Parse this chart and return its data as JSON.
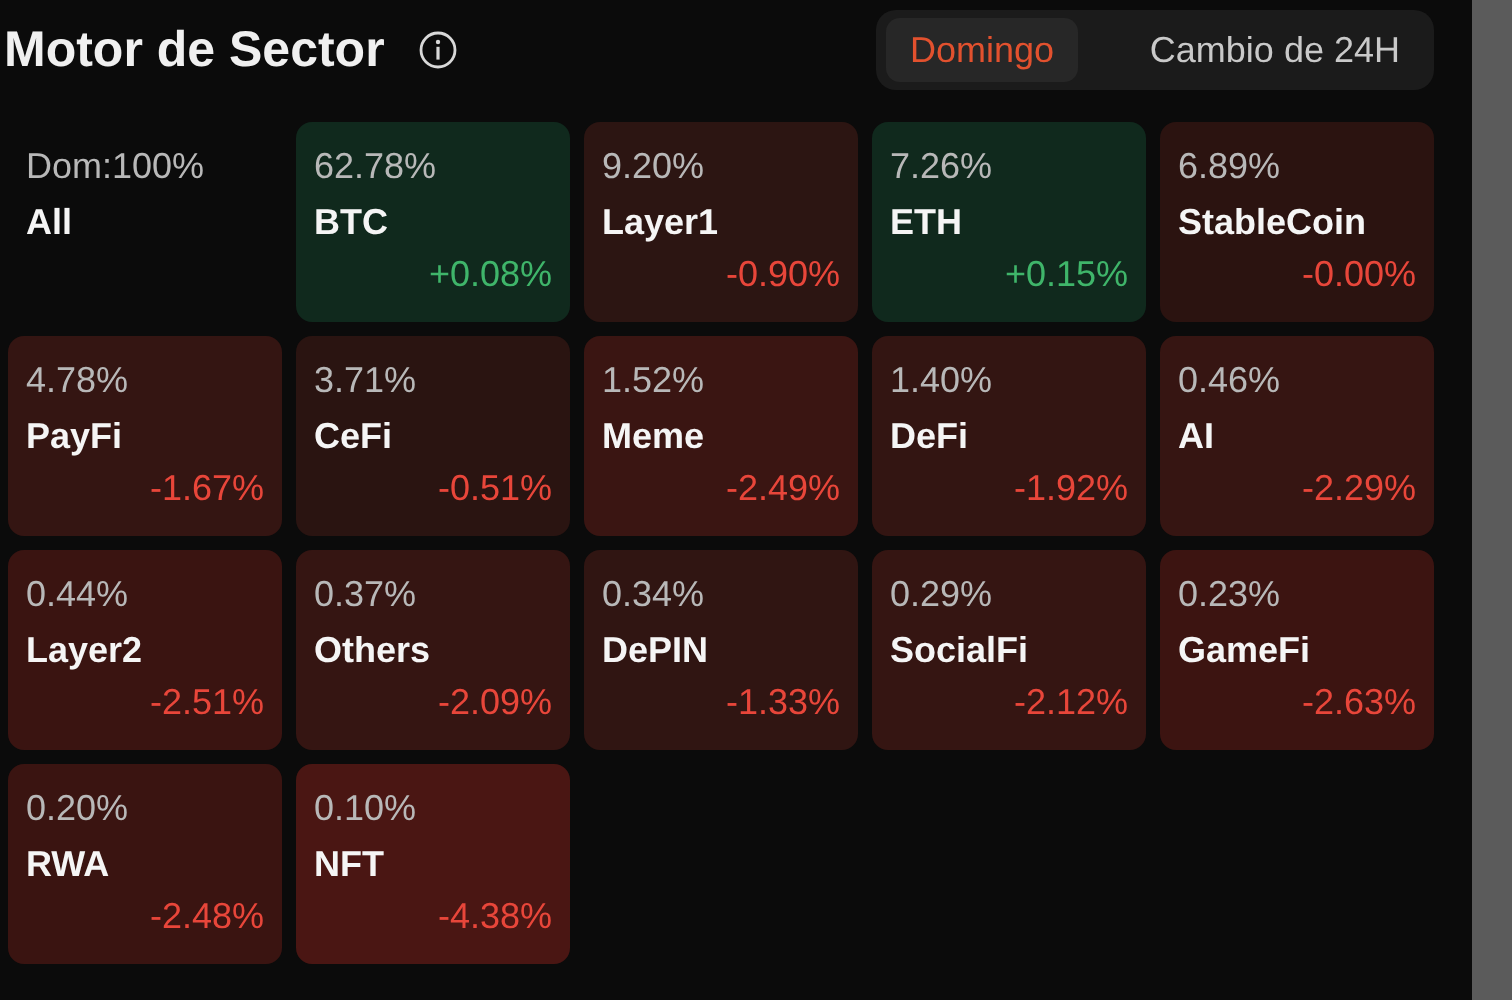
{
  "chart_data": {
    "type": "other",
    "title": "Motor de Sector",
    "annotations": [
      "Domingo",
      "Cambio de 24H"
    ],
    "categories": [
      "All",
      "BTC",
      "Layer1",
      "ETH",
      "StableCoin",
      "PayFi",
      "CeFi",
      "Meme",
      "DeFi",
      "AI",
      "Layer2",
      "Others",
      "DePIN",
      "SocialFi",
      "GameFi",
      "RWA",
      "NFT"
    ],
    "series": [
      {
        "colors": [
          null,
          "#10291d",
          "#2c1512",
          "#10291d",
          "#2b1310",
          "#341512",
          "#2a1411",
          "#3a1512",
          "#331512",
          "#361512",
          "#3a1411",
          "#351512",
          "#301512",
          "#351512",
          "#3c1411",
          "#3a1411",
          "#4a1613"
        ],
        "values": [
          100,
          62.78,
          9.2,
          7.26,
          6.89,
          4.78,
          3.71,
          1.52,
          1.4,
          0.46,
          0.44,
          0.37,
          0.34,
          0.29,
          0.23,
          0.2,
          0.1
        ],
        "value_labels": [
          "Dom:100%",
          "62.78%",
          "9.20%",
          "7.26%",
          "6.89%",
          "4.78%",
          "3.71%",
          "1.52%",
          "1.40%",
          "0.46%",
          "0.44%",
          "0.37%",
          "0.34%",
          "0.29%",
          "0.23%",
          "0.20%",
          "0.10%"
        ]
      },
      {
        "colors": [
          null,
          "#3fb56a",
          "#e8463a",
          "#3fb56a",
          "#e8463a",
          "#e8463a",
          "#e8463a",
          "#e8463a",
          "#e8463a",
          "#e8463a",
          "#e8463a",
          "#e8463a",
          "#e8463a",
          "#e8463a",
          "#e8463a",
          "#e8463a",
          "#e8463a"
        ],
        "values": [
          null,
          0.08,
          -0.9,
          0.15,
          -0.0,
          -1.67,
          -0.51,
          -2.49,
          -1.92,
          -2.29,
          -2.51,
          -2.09,
          -1.33,
          -2.12,
          -2.63,
          -2.48,
          -4.38
        ],
        "value_labels": [
          null,
          "+0.08%",
          "-0.90%",
          "+0.15%",
          "-0.00%",
          "-1.67%",
          "-0.51%",
          "-2.49%",
          "-1.92%",
          "-2.29%",
          "-2.51%",
          "-2.09%",
          "-1.33%",
          "-2.12%",
          "-2.63%",
          "-2.48%",
          "-4.38%"
        ]
      }
    ]
  }
}
